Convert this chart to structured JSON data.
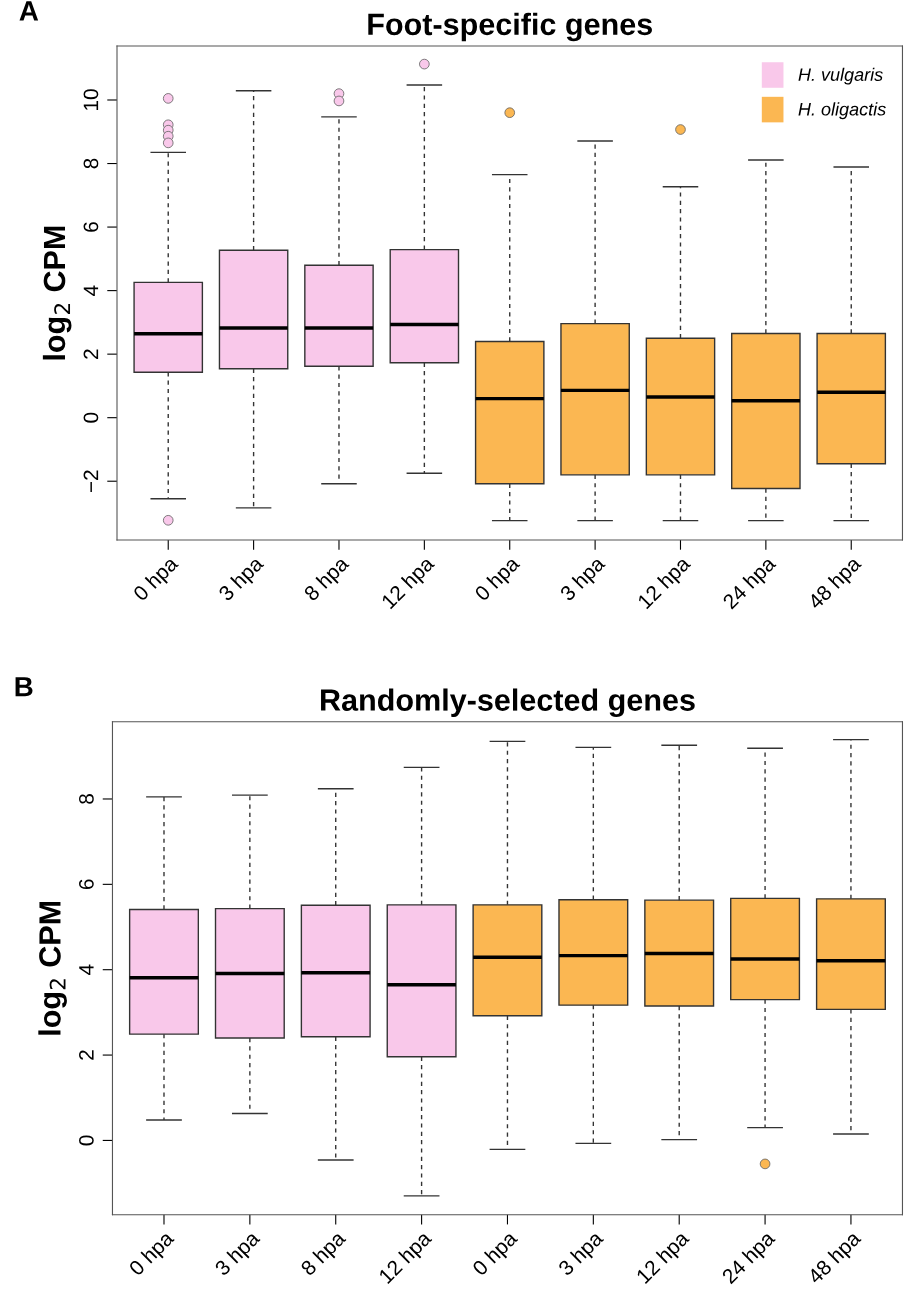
{
  "chart_data": [
    {
      "type": "box",
      "title": "Foot-specific genes",
      "ylabel": "log$_{2}$ CPM",
      "annotations": [
        "A"
      ],
      "categories": [
        "0 hpa",
        "3 hpa",
        "8 hpa",
        "12 hpa",
        "0 hpa",
        "3 hpa",
        "12 hpa",
        "24 hpa",
        "48 hpa"
      ],
      "ylim": [
        -3.85,
        11.7
      ],
      "yticks": [
        -2,
        0,
        2,
        4,
        6,
        8,
        10
      ],
      "legend": "top right",
      "grid": false,
      "series": [
        {
          "name": "H. vulgaris",
          "color": "#f9c8ea",
          "boxes": [
            {
              "low": -2.55,
              "q1": 1.43,
              "median": 2.64,
              "q3": 4.26,
              "high": 8.35,
              "outliers": [
                10.05,
                9.22,
                9.05,
                8.86,
                8.65,
                -3.23
              ]
            },
            {
              "low": -2.84,
              "q1": 1.54,
              "median": 2.82,
              "q3": 5.27,
              "high": 10.29
            },
            {
              "low": -2.08,
              "q1": 1.62,
              "median": 2.82,
              "q3": 4.8,
              "high": 9.47,
              "outliers": [
                10.2,
                9.97
              ]
            },
            {
              "low": -1.75,
              "q1": 1.73,
              "median": 2.93,
              "q3": 5.29,
              "high": 10.47,
              "outliers": [
                11.13
              ]
            },
            null,
            null,
            null,
            null,
            null
          ]
        },
        {
          "name": "H. oligactis",
          "color": "#fbb752",
          "boxes": [
            null,
            null,
            null,
            null,
            {
              "low": -3.24,
              "q1": -2.08,
              "median": 0.6,
              "q3": 2.4,
              "high": 7.65,
              "outliers": [
                9.6
              ]
            },
            {
              "low": -3.24,
              "q1": -1.8,
              "median": 0.86,
              "q3": 2.96,
              "high": 8.71
            },
            {
              "low": -3.24,
              "q1": -1.8,
              "median": 0.65,
              "q3": 2.5,
              "high": 7.27,
              "outliers": [
                9.07
              ]
            },
            {
              "low": -3.24,
              "q1": -2.23,
              "median": 0.53,
              "q3": 2.65,
              "high": 8.11
            },
            {
              "low": -3.24,
              "q1": -1.45,
              "median": 0.8,
              "q3": 2.65,
              "high": 7.89
            }
          ]
        }
      ]
    },
    {
      "type": "box",
      "title": "Randomly-selected genes",
      "ylabel": "log$_{2}$ CPM",
      "annotations": [
        "B"
      ],
      "categories": [
        "0 hpa",
        "3 hpa",
        "8 hpa",
        "12 hpa",
        "0 hpa",
        "3 hpa",
        "12 hpa",
        "24 hpa",
        "48 hpa"
      ],
      "ylim": [
        -1.74,
        9.81
      ],
      "yticks": [
        0,
        2,
        4,
        6,
        8
      ],
      "grid": false,
      "series": [
        {
          "color": "#f9c8ea",
          "boxes": [
            {
              "low": 0.48,
              "q1": 2.49,
              "median": 3.81,
              "q3": 5.41,
              "high": 8.05
            },
            {
              "low": 0.63,
              "q1": 2.4,
              "median": 3.91,
              "q3": 5.43,
              "high": 8.09
            },
            {
              "low": -0.46,
              "q1": 2.43,
              "median": 3.93,
              "q3": 5.51,
              "high": 8.24
            },
            {
              "low": -1.3,
              "q1": 1.96,
              "median": 3.65,
              "q3": 5.52,
              "high": 8.74
            },
            null,
            null,
            null,
            null,
            null
          ]
        },
        {
          "color": "#fbb752",
          "boxes": [
            null,
            null,
            null,
            null,
            {
              "low": -0.21,
              "q1": 2.92,
              "median": 4.29,
              "q3": 5.52,
              "high": 9.35
            },
            {
              "low": -0.07,
              "q1": 3.17,
              "median": 4.33,
              "q3": 5.64,
              "high": 9.21
            },
            {
              "low": 0.02,
              "q1": 3.15,
              "median": 4.38,
              "q3": 5.63,
              "high": 9.26
            },
            {
              "low": 0.3,
              "q1": 3.3,
              "median": 4.25,
              "q3": 5.67,
              "high": 9.19,
              "outliers": [
                -0.55
              ]
            },
            {
              "low": 0.15,
              "q1": 3.07,
              "median": 4.21,
              "q3": 5.66,
              "high": 9.39
            }
          ]
        }
      ]
    }
  ]
}
